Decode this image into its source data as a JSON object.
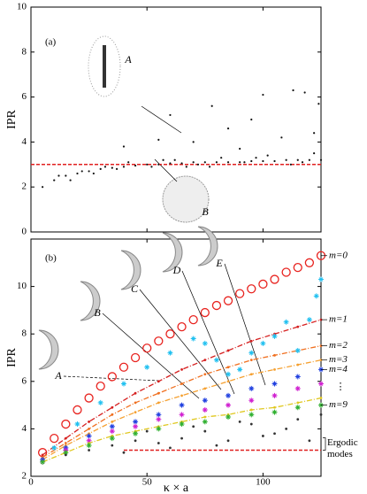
{
  "chart_data": [
    {
      "type": "scatter",
      "label": "(a)",
      "ylabel": "IPR",
      "xlim": [
        0,
        125
      ],
      "ylim": [
        0,
        10
      ],
      "xticks": [
        0,
        50,
        100
      ],
      "yticks": [
        0,
        2,
        4,
        6,
        8,
        10
      ],
      "xtick_labels": false,
      "ref_line": {
        "x": [
          0,
          125
        ],
        "value": 3,
        "color": "#e02020"
      },
      "insets": [
        {
          "label": "A"
        },
        {
          "label": "B"
        }
      ],
      "series": [
        {
          "color": "#111",
          "x": [
            5,
            10,
            15,
            20,
            25,
            30,
            35,
            40,
            45,
            50,
            55,
            60,
            65,
            70,
            75,
            80,
            85,
            90,
            95,
            100,
            105,
            110,
            115,
            120,
            125,
            12,
            22,
            32,
            42,
            52,
            62,
            72,
            82,
            92,
            102,
            112,
            122,
            17,
            37,
            57,
            77,
            97,
            117,
            27,
            67,
            100,
            113,
            118,
            78,
            95,
            60,
            124,
            85,
            108,
            70,
            40,
            122,
            90,
            55
          ],
          "values": [
            2.0,
            2.3,
            2.5,
            2.6,
            2.7,
            2.8,
            2.85,
            2.9,
            2.95,
            3.0,
            3.0,
            3.05,
            3.05,
            3.1,
            3.1,
            3.1,
            3.1,
            3.1,
            3.15,
            3.15,
            3.15,
            3.2,
            3.2,
            3.2,
            3.2,
            2.5,
            2.7,
            2.9,
            3.1,
            2.9,
            3.2,
            3.0,
            3.3,
            3.1,
            3.4,
            3.0,
            3.5,
            2.3,
            2.8,
            3.2,
            2.9,
            3.3,
            3.1,
            2.6,
            2.9,
            6.1,
            6.3,
            6.2,
            5.6,
            5.0,
            5.2,
            5.7,
            4.6,
            4.2,
            4.0,
            3.8,
            4.4,
            3.7,
            4.1
          ]
        }
      ]
    },
    {
      "type": "line",
      "label": "(b)",
      "ylabel": "IPR",
      "xlabel": "κ × a",
      "xlim": [
        0,
        125
      ],
      "ylim": [
        2,
        12
      ],
      "xticks": [
        0,
        50,
        100
      ],
      "yticks": [
        2,
        4,
        6,
        8,
        10
      ],
      "xtick_labels": true,
      "ref_line": {
        "x": [
          40,
          125
        ],
        "value": 3.1,
        "color": "#e02020"
      },
      "ellipsis": "⋮",
      "ergodic_label": [
        "Ergodic",
        "modes"
      ],
      "insets": [
        {
          "label": "A"
        },
        {
          "label": "B"
        },
        {
          "label": "C"
        },
        {
          "label": "D"
        },
        {
          "label": "E"
        }
      ],
      "series": [
        {
          "name": "m=0",
          "color": "#e8231f",
          "marker": "circle",
          "x": [
            5,
            10,
            15,
            20,
            25,
            30,
            35,
            40,
            45,
            50,
            55,
            60,
            65,
            70,
            75,
            80,
            85,
            90,
            95,
            100,
            105,
            110,
            115,
            120,
            125
          ],
          "values": [
            3.0,
            3.6,
            4.2,
            4.8,
            5.3,
            5.8,
            6.2,
            6.6,
            7.0,
            7.4,
            7.7,
            8.0,
            8.3,
            8.6,
            8.9,
            9.2,
            9.4,
            9.7,
            9.9,
            10.1,
            10.3,
            10.6,
            10.8,
            11.0,
            11.3
          ]
        },
        {
          "name": "m=1",
          "color": "#d62020",
          "marker": "dot",
          "line": "dashdot",
          "x": [
            5,
            15,
            25,
            35,
            45,
            55,
            65,
            75,
            85,
            95,
            105,
            115,
            125
          ],
          "values": [
            2.9,
            3.6,
            4.3,
            4.9,
            5.5,
            6.0,
            6.5,
            6.9,
            7.3,
            7.7,
            8.0,
            8.3,
            8.6
          ]
        },
        {
          "name": "m=2",
          "color": "#f07020",
          "marker": "dot",
          "line": "dashdot",
          "x": [
            5,
            15,
            25,
            35,
            45,
            55,
            65,
            75,
            85,
            95,
            105,
            115,
            125
          ],
          "values": [
            2.8,
            3.4,
            4.0,
            4.6,
            5.1,
            5.5,
            5.9,
            6.3,
            6.6,
            6.9,
            7.1,
            7.3,
            7.5
          ]
        },
        {
          "name": "m=3",
          "color": "#f5a030",
          "marker": "dot",
          "line": "dashdot",
          "x": [
            5,
            15,
            25,
            35,
            45,
            55,
            65,
            75,
            85,
            95,
            105,
            115,
            125
          ],
          "values": [
            2.7,
            3.3,
            3.8,
            4.3,
            4.7,
            5.1,
            5.4,
            5.7,
            6.0,
            6.3,
            6.5,
            6.7,
            6.9
          ]
        },
        {
          "name": "m=4",
          "color": "#2040e0",
          "marker": "star",
          "x": [
            5,
            15,
            25,
            35,
            45,
            55,
            65,
            75,
            85,
            95,
            105,
            115,
            125
          ],
          "values": [
            2.7,
            3.2,
            3.7,
            4.1,
            4.3,
            4.6,
            5.0,
            5.2,
            5.4,
            5.7,
            5.9,
            6.2,
            6.5
          ]
        },
        {
          "color": "#d020d0",
          "marker": "star",
          "x": [
            5,
            15,
            25,
            35,
            45,
            55,
            65,
            75,
            85,
            95,
            105,
            115,
            125
          ],
          "values": [
            2.6,
            3.1,
            3.5,
            3.9,
            4.1,
            4.4,
            4.6,
            4.8,
            5.0,
            5.2,
            5.4,
            5.7,
            5.9
          ]
        },
        {
          "color": "#e0c820",
          "marker": "dot",
          "line": "dashdot",
          "x": [
            5,
            15,
            25,
            35,
            45,
            55,
            65,
            75,
            85,
            95,
            105,
            115,
            125
          ],
          "values": [
            2.6,
            3.0,
            3.4,
            3.7,
            3.9,
            4.1,
            4.3,
            4.5,
            4.6,
            4.8,
            4.9,
            5.1,
            5.3
          ]
        },
        {
          "name": "m=9",
          "color": "#30b030",
          "marker": "star",
          "x": [
            5,
            15,
            25,
            35,
            45,
            55,
            65,
            75,
            85,
            95,
            105,
            115,
            125
          ],
          "values": [
            2.6,
            3.0,
            3.3,
            3.6,
            3.8,
            4.0,
            4.2,
            4.3,
            4.5,
            4.6,
            4.7,
            4.9,
            5.0
          ]
        },
        {
          "color": "#20c0f0",
          "marker": "star",
          "x": [
            10,
            20,
            30,
            40,
            50,
            60,
            70,
            75,
            80,
            85,
            90,
            95,
            100,
            105,
            110,
            115,
            120,
            123,
            125
          ],
          "values": [
            3.2,
            4.2,
            5.1,
            5.9,
            6.6,
            7.2,
            7.8,
            7.6,
            6.9,
            6.3,
            6.5,
            7.2,
            7.6,
            7.9,
            8.5,
            7.3,
            8.6,
            9.6,
            10.3
          ]
        },
        {
          "color": "#333",
          "marker": "dot",
          "x": [
            15,
            25,
            35,
            45,
            55,
            65,
            75,
            85,
            95,
            105,
            115,
            125,
            40,
            60,
            80,
            100,
            120,
            50,
            70,
            90,
            110
          ],
          "values": [
            2.9,
            3.1,
            3.3,
            3.5,
            3.4,
            3.6,
            3.9,
            3.5,
            4.2,
            3.8,
            4.4,
            4.6,
            3.0,
            3.2,
            3.3,
            3.7,
            3.5,
            3.9,
            4.1,
            4.3,
            4.0
          ]
        }
      ]
    }
  ]
}
